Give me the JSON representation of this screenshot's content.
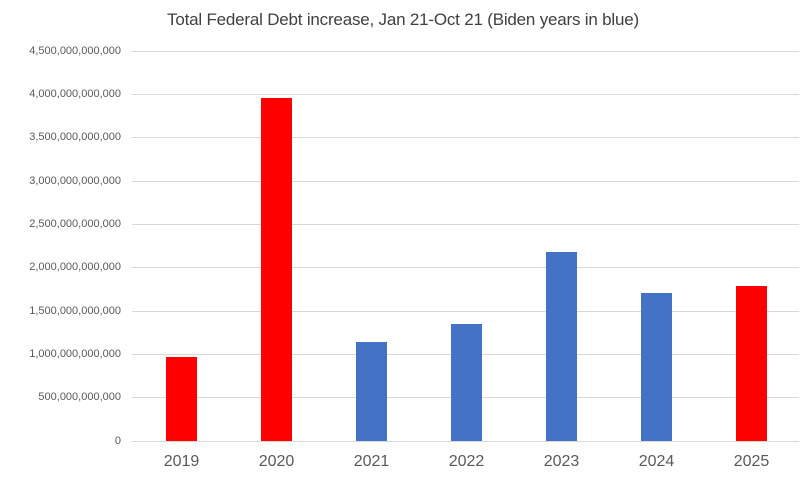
{
  "chart_data": {
    "type": "bar",
    "title": "Total Federal Debt increase, Jan 21-Oct 21 (Biden years in blue)",
    "xlabel": "",
    "ylabel": "",
    "categories": [
      "2019",
      "2020",
      "2021",
      "2022",
      "2023",
      "2024",
      "2025"
    ],
    "values": [
      970000000000,
      3960000000000,
      1145000000000,
      1350000000000,
      2180000000000,
      1705000000000,
      1790000000000
    ],
    "bar_colors": [
      "#FF0000",
      "#FF0000",
      "#4472C4",
      "#4472C4",
      "#4472C4",
      "#4472C4",
      "#FF0000"
    ],
    "ylim": [
      0,
      4500000000000
    ],
    "ytick_values": [
      0,
      500000000000,
      1000000000000,
      1500000000000,
      2000000000000,
      2500000000000,
      3000000000000,
      3500000000000,
      4000000000000,
      4500000000000
    ],
    "ytick_labels": [
      "0",
      "500,000,000,000",
      "1,000,000,000,000",
      "1,500,000,000,000",
      "2,000,000,000,000",
      "2,500,000,000,000",
      "3,000,000,000,000",
      "3,500,000,000,000",
      "4,000,000,000,000",
      "4,500,000,000,000"
    ],
    "grid": true,
    "legend": "none"
  },
  "colors": {
    "biden_bar": "#4472C4",
    "other_bar": "#FF0000",
    "gridline": "#d9d9d9",
    "axis_text": "#595959",
    "title_text": "#404040",
    "background": "#FFFFFF"
  }
}
